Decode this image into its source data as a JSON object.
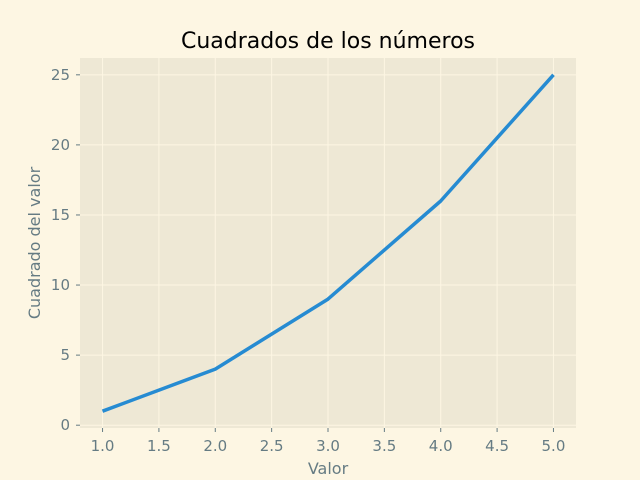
{
  "chart_data": {
    "type": "line",
    "title": "Cuadrados de los números",
    "xlabel": "Valor",
    "ylabel": "Cuadrado del valor",
    "xlim": [
      0.8,
      5.2
    ],
    "ylim": [
      -0.2,
      26.2
    ],
    "xticks": [
      "1.0",
      "1.5",
      "2.0",
      "2.5",
      "3.0",
      "3.5",
      "4.0",
      "4.5",
      "5.0"
    ],
    "yticks": [
      "0",
      "5",
      "10",
      "15",
      "20",
      "25"
    ],
    "grid": true,
    "series": [
      {
        "x": [
          1,
          2,
          3,
          4,
          5
        ],
        "y": [
          1,
          4,
          9,
          16,
          25
        ]
      }
    ],
    "colors": {
      "figure_bg": "#fdf6e3",
      "plot_bg": "#eee8d5",
      "grid": "#fdf6e3",
      "line": "#268bd2",
      "axis_text": "#657b83",
      "title": "#000000"
    }
  }
}
